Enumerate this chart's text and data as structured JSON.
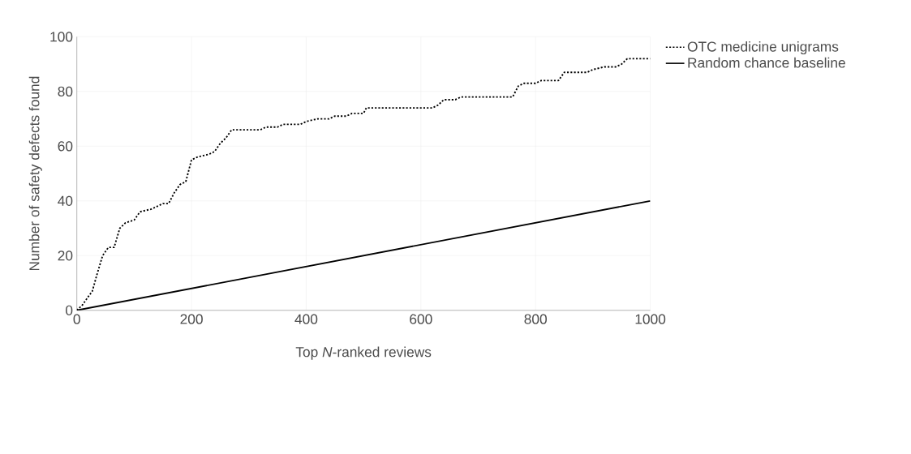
{
  "chart_data": {
    "type": "line",
    "xlabel": "Top *N*-ranked reviews",
    "ylabel": "Number of safety defects found",
    "xlim": [
      0,
      1000
    ],
    "ylim": [
      0,
      100
    ],
    "xticks": [
      0,
      200,
      400,
      600,
      800,
      1000
    ],
    "yticks": [
      0,
      20,
      40,
      60,
      80,
      100
    ],
    "grid": true,
    "legend": "top right",
    "series": [
      {
        "name": "OTC medicine unigrams",
        "color": "#000000",
        "line_style": "dotted",
        "x": [
          0,
          10,
          20,
          27,
          35,
          45,
          55,
          65,
          75,
          85,
          100,
          110,
          130,
          140,
          150,
          160,
          170,
          180,
          190,
          200,
          210,
          230,
          240,
          250,
          260,
          270,
          300,
          320,
          330,
          350,
          360,
          390,
          400,
          420,
          440,
          450,
          470,
          480,
          500,
          505,
          620,
          630,
          640,
          660,
          670,
          760,
          770,
          780,
          800,
          810,
          840,
          850,
          890,
          900,
          920,
          940,
          950,
          960,
          1000
        ],
        "values": [
          0,
          2,
          5,
          7,
          13,
          20,
          23,
          23,
          30,
          32,
          33,
          36,
          37,
          38,
          39,
          39,
          43,
          46,
          47,
          55,
          56,
          57,
          58,
          61,
          63,
          66,
          66,
          66,
          67,
          67,
          68,
          68,
          69,
          70,
          70,
          71,
          71,
          72,
          72,
          74,
          74,
          75,
          77,
          77,
          78,
          78,
          82,
          83,
          83,
          84,
          84,
          87,
          87,
          88,
          89,
          89,
          90,
          92,
          92
        ]
      },
      {
        "name": "Random chance baseline",
        "color": "#000000",
        "line_style": "solid",
        "x": [
          0,
          1000
        ],
        "values": [
          0,
          40
        ]
      }
    ]
  }
}
